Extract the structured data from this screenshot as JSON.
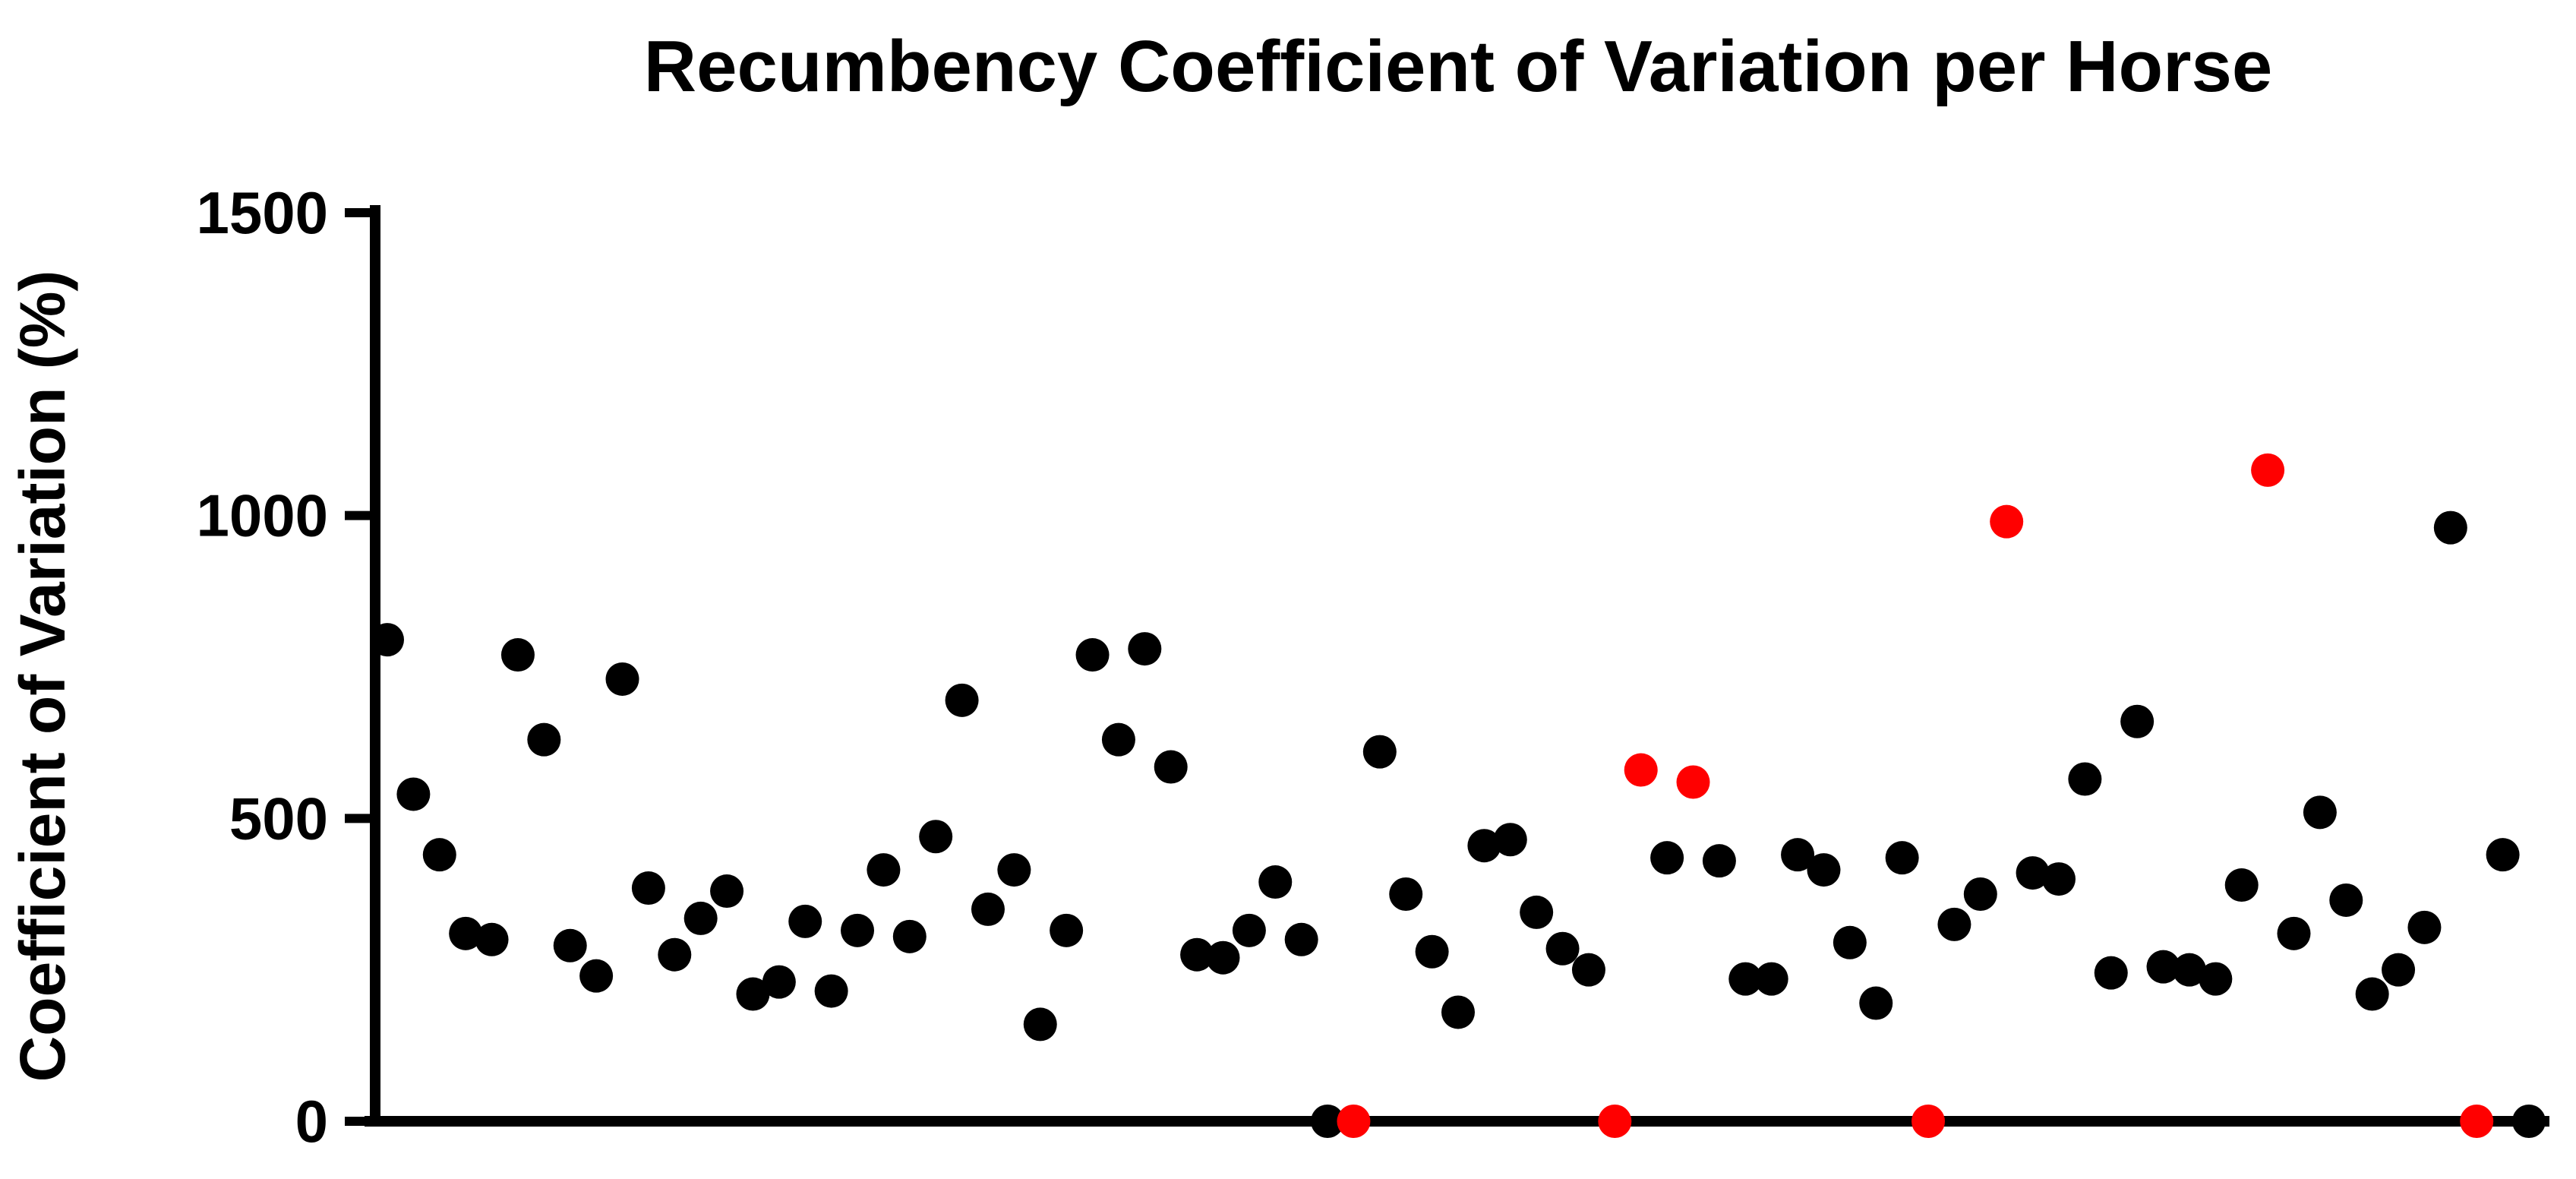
{
  "chart_data": {
    "type": "scatter",
    "title": "Recumbency Coefficient of Variation per Horse",
    "xlabel": "",
    "ylabel": "Coefficient of Variation (%)",
    "ylim": [
      0,
      1500
    ],
    "yticks": [
      0,
      500,
      1000,
      1500
    ],
    "ytick_labels": [
      "0",
      "500",
      "1000",
      "1500"
    ],
    "grid": false,
    "legend": "none",
    "colors": {
      "default": "#000000",
      "highlight": "#ff0000"
    },
    "series": [
      {
        "values": [
          {
            "x": 1,
            "y": 795,
            "highlight": false
          },
          {
            "x": 2,
            "y": 540,
            "highlight": false
          },
          {
            "x": 3,
            "y": 440,
            "highlight": false
          },
          {
            "x": 4,
            "y": 310,
            "highlight": false
          },
          {
            "x": 5,
            "y": 300,
            "highlight": false
          },
          {
            "x": 6,
            "y": 770,
            "highlight": false
          },
          {
            "x": 7,
            "y": 630,
            "highlight": false
          },
          {
            "x": 8,
            "y": 290,
            "highlight": false
          },
          {
            "x": 9,
            "y": 240,
            "highlight": false
          },
          {
            "x": 10,
            "y": 730,
            "highlight": false
          },
          {
            "x": 11,
            "y": 385,
            "highlight": false
          },
          {
            "x": 12,
            "y": 275,
            "highlight": false
          },
          {
            "x": 13,
            "y": 335,
            "highlight": false
          },
          {
            "x": 14,
            "y": 380,
            "highlight": false
          },
          {
            "x": 15,
            "y": 210,
            "highlight": false
          },
          {
            "x": 16,
            "y": 230,
            "highlight": false
          },
          {
            "x": 17,
            "y": 330,
            "highlight": false
          },
          {
            "x": 18,
            "y": 215,
            "highlight": false
          },
          {
            "x": 19,
            "y": 315,
            "highlight": false
          },
          {
            "x": 20,
            "y": 415,
            "highlight": false
          },
          {
            "x": 21,
            "y": 305,
            "highlight": false
          },
          {
            "x": 22,
            "y": 470,
            "highlight": false
          },
          {
            "x": 23,
            "y": 695,
            "highlight": false
          },
          {
            "x": 24,
            "y": 350,
            "highlight": false
          },
          {
            "x": 25,
            "y": 415,
            "highlight": false
          },
          {
            "x": 26,
            "y": 160,
            "highlight": false
          },
          {
            "x": 27,
            "y": 315,
            "highlight": false
          },
          {
            "x": 28,
            "y": 770,
            "highlight": false
          },
          {
            "x": 29,
            "y": 630,
            "highlight": false
          },
          {
            "x": 30,
            "y": 780,
            "highlight": false
          },
          {
            "x": 31,
            "y": 585,
            "highlight": false
          },
          {
            "x": 32,
            "y": 275,
            "highlight": false
          },
          {
            "x": 33,
            "y": 270,
            "highlight": false
          },
          {
            "x": 34,
            "y": 315,
            "highlight": false
          },
          {
            "x": 35,
            "y": 395,
            "highlight": false
          },
          {
            "x": 36,
            "y": 300,
            "highlight": false
          },
          {
            "x": 37,
            "y": 0,
            "highlight": false
          },
          {
            "x": 38,
            "y": 0,
            "highlight": true
          },
          {
            "x": 39,
            "y": 610,
            "highlight": false
          },
          {
            "x": 40,
            "y": 375,
            "highlight": false
          },
          {
            "x": 41,
            "y": 280,
            "highlight": false
          },
          {
            "x": 42,
            "y": 180,
            "highlight": false
          },
          {
            "x": 43,
            "y": 455,
            "highlight": false
          },
          {
            "x": 44,
            "y": 465,
            "highlight": false
          },
          {
            "x": 45,
            "y": 345,
            "highlight": false
          },
          {
            "x": 46,
            "y": 285,
            "highlight": false
          },
          {
            "x": 47,
            "y": 250,
            "highlight": false
          },
          {
            "x": 48,
            "y": 0,
            "highlight": true
          },
          {
            "x": 49,
            "y": 580,
            "highlight": true
          },
          {
            "x": 50,
            "y": 435,
            "highlight": false
          },
          {
            "x": 51,
            "y": 560,
            "highlight": true
          },
          {
            "x": 52,
            "y": 430,
            "highlight": false
          },
          {
            "x": 53,
            "y": 235,
            "highlight": false
          },
          {
            "x": 54,
            "y": 235,
            "highlight": false
          },
          {
            "x": 55,
            "y": 440,
            "highlight": false
          },
          {
            "x": 56,
            "y": 415,
            "highlight": false
          },
          {
            "x": 57,
            "y": 295,
            "highlight": false
          },
          {
            "x": 58,
            "y": 195,
            "highlight": false
          },
          {
            "x": 59,
            "y": 435,
            "highlight": false
          },
          {
            "x": 60,
            "y": 0,
            "highlight": true
          },
          {
            "x": 61,
            "y": 325,
            "highlight": false
          },
          {
            "x": 62,
            "y": 375,
            "highlight": false
          },
          {
            "x": 63,
            "y": 990,
            "highlight": true
          },
          {
            "x": 64,
            "y": 410,
            "highlight": false
          },
          {
            "x": 65,
            "y": 400,
            "highlight": false
          },
          {
            "x": 66,
            "y": 565,
            "highlight": false
          },
          {
            "x": 67,
            "y": 245,
            "highlight": false
          },
          {
            "x": 68,
            "y": 660,
            "highlight": false
          },
          {
            "x": 69,
            "y": 255,
            "highlight": false
          },
          {
            "x": 70,
            "y": 250,
            "highlight": false
          },
          {
            "x": 71,
            "y": 235,
            "highlight": false
          },
          {
            "x": 72,
            "y": 390,
            "highlight": false
          },
          {
            "x": 73,
            "y": 1075,
            "highlight": true
          },
          {
            "x": 74,
            "y": 310,
            "highlight": false
          },
          {
            "x": 75,
            "y": 510,
            "highlight": false
          },
          {
            "x": 76,
            "y": 365,
            "highlight": false
          },
          {
            "x": 77,
            "y": 210,
            "highlight": false
          },
          {
            "x": 78,
            "y": 250,
            "highlight": false
          },
          {
            "x": 79,
            "y": 320,
            "highlight": false
          },
          {
            "x": 80,
            "y": 980,
            "highlight": false
          },
          {
            "x": 81,
            "y": 0,
            "highlight": true
          },
          {
            "x": 82,
            "y": 440,
            "highlight": false
          },
          {
            "x": 83,
            "y": 0,
            "highlight": false
          }
        ]
      }
    ]
  }
}
